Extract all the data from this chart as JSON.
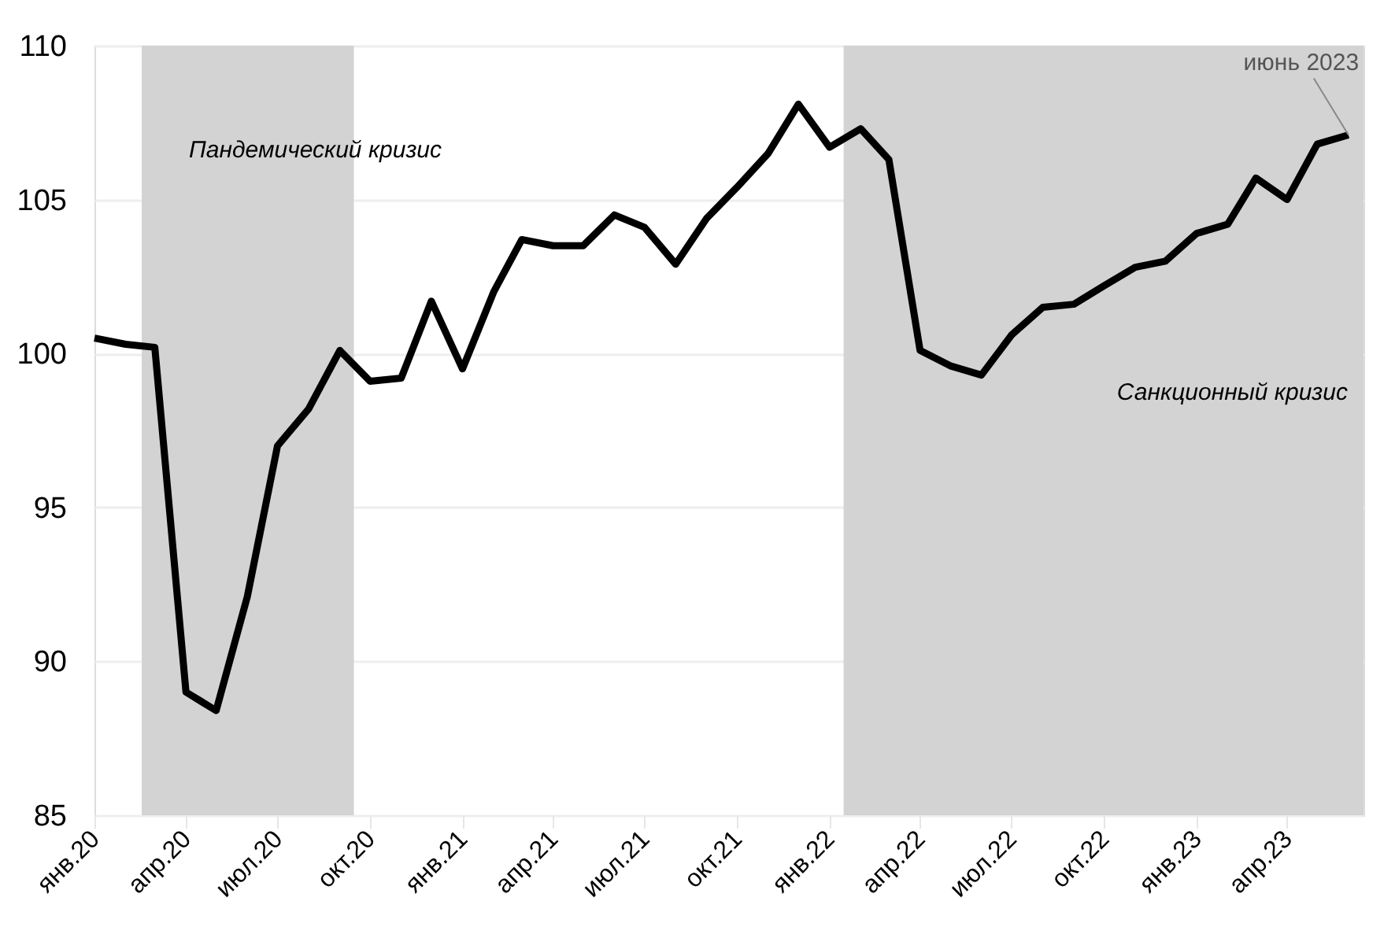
{
  "chart_data": {
    "type": "line",
    "x": [
      "2020-01",
      "2020-02",
      "2020-03",
      "2020-04",
      "2020-05",
      "2020-06",
      "2020-07",
      "2020-08",
      "2020-09",
      "2020-10",
      "2020-11",
      "2020-12",
      "2021-01",
      "2021-02",
      "2021-03",
      "2021-04",
      "2021-05",
      "2021-06",
      "2021-07",
      "2021-08",
      "2021-09",
      "2021-10",
      "2021-11",
      "2021-12",
      "2022-01",
      "2022-02",
      "2022-03",
      "2022-04",
      "2022-05",
      "2022-06",
      "2022-07",
      "2022-08",
      "2022-09",
      "2022-10",
      "2022-11",
      "2022-12",
      "2023-01",
      "2023-02",
      "2023-03",
      "2023-04",
      "2023-05",
      "2023-06"
    ],
    "series": [
      {
        "color": "#000000",
        "values": [
          100.5,
          100.3,
          100.2,
          89.0,
          88.4,
          92.1,
          97.0,
          98.2,
          100.1,
          99.1,
          99.2,
          101.7,
          99.5,
          102.0,
          103.7,
          103.5,
          103.5,
          104.5,
          104.1,
          102.9,
          104.4,
          105.4,
          106.5,
          108.1,
          106.7,
          107.3,
          106.3,
          100.1,
          99.6,
          99.3,
          100.6,
          101.5,
          101.6,
          102.2,
          102.8,
          103.0,
          103.9,
          104.2,
          105.7,
          105.0,
          106.8,
          107.1
        ]
      }
    ],
    "xlim": [
      "2020-01-01",
      "2023-06-16"
    ],
    "xticks": [
      {
        "value": "2020-01",
        "label": "янв.20"
      },
      {
        "value": "2020-04",
        "label": "апр.20"
      },
      {
        "value": "2020-07",
        "label": "июл.20"
      },
      {
        "value": "2020-10",
        "label": "окт.20"
      },
      {
        "value": "2021-01",
        "label": "янв.21"
      },
      {
        "value": "2021-04",
        "label": "апр.21"
      },
      {
        "value": "2021-07",
        "label": "июл.21"
      },
      {
        "value": "2021-10",
        "label": "окт.21"
      },
      {
        "value": "2022-01",
        "label": "янв.22"
      },
      {
        "value": "2022-04",
        "label": "апр.22"
      },
      {
        "value": "2022-07",
        "label": "июл.22"
      },
      {
        "value": "2022-10",
        "label": "окт.22"
      },
      {
        "value": "2023-01",
        "label": "янв.23"
      },
      {
        "value": "2023-04",
        "label": "апр.23"
      }
    ],
    "ylim": [
      85,
      110
    ],
    "yticks": [
      85,
      90,
      95,
      100,
      105,
      110
    ],
    "bands": [
      {
        "axis": "x",
        "from": "2020-02-17",
        "to": "2020-09-15",
        "label": "Пандемический кризис",
        "color": "#d3d3d3"
      },
      {
        "axis": "x",
        "from": "2022-01-15",
        "to": "2023-06-16",
        "label": "Санкционный кризис",
        "color": "#d3d3d3"
      }
    ],
    "annotations": [
      {
        "text": "июнь 2023",
        "x": "2023-06",
        "y": 107.1
      }
    ],
    "grid": "y",
    "marker": "none",
    "line_style": "solid"
  }
}
